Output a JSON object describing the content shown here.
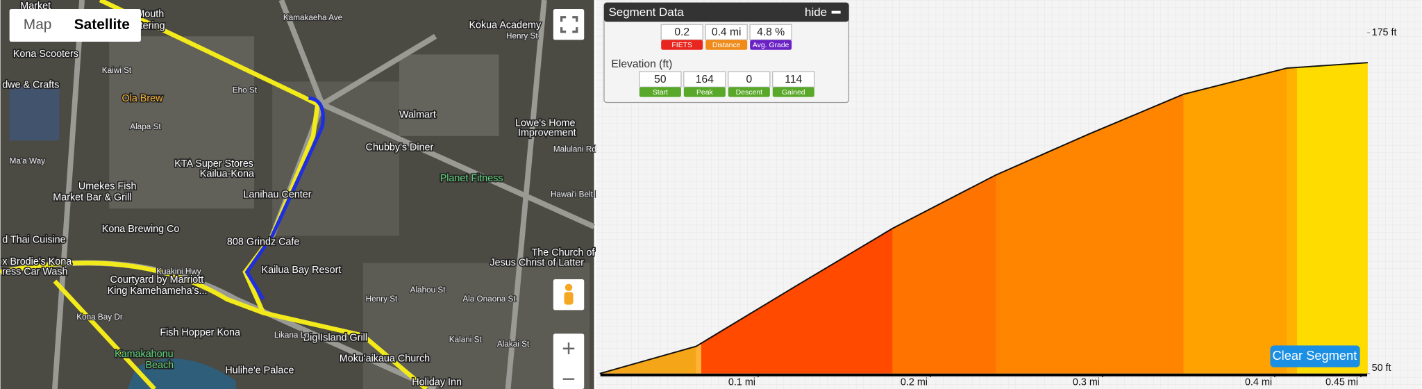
{
  "map": {
    "controls": {
      "map": "Map",
      "satellite": "Satellite",
      "zoom_in": "+",
      "zoom_out": "−"
    },
    "labels": [
      "Market",
      "Mouth",
      "Catering",
      "Kona Scooters",
      "dwe & Crafts",
      "Ola Brew",
      "Alapa St",
      "Ma'a Way",
      "KTA Super Stores",
      "Kailua-Kona",
      "Umekes Fish",
      "Market Bar & Grill",
      "Lanihau Center",
      "Kona Brewing Co",
      "d Thai Cuisine",
      "808 Grindz Cafe",
      "x Brodie's Kona",
      "ress Car Wash",
      "Courtyard by Marriott",
      "King Kamehameha's...",
      "Kailua Bay Resort",
      "Fish Hopper Kona",
      "Big Island Grill",
      "Kamakahonu",
      "Beach",
      "Hulihe'e Palace",
      "Moku'aikaua Church",
      "Holiday Inn",
      "Kokua Academy",
      "Walmart",
      "Chubby's Diner",
      "Lowe's Home",
      "Improvement",
      "Planet Fitness",
      "The Church of",
      "Jesus Christ of Latter",
      "Kamakaeha Ave",
      "Henry St",
      "Eho St",
      "Kaiwi St",
      "Hawai'i Belt Rd",
      "Malulani Rd",
      "Kuakini Hwy",
      "Ala Onaona St",
      "Kalani St",
      "Alakai St",
      "Likana Ln",
      "Kona Bay Dr",
      "Henry St",
      "Alahou St"
    ]
  },
  "segment_data": {
    "title": "Segment Data",
    "hide": "hide",
    "stats": [
      {
        "value": "0.2",
        "label": "FIETS"
      },
      {
        "value": "0.4 mi",
        "label": "Distance"
      },
      {
        "value": "4.8 %",
        "label": "Avg. Grade"
      }
    ],
    "elevation_title": "Elevation (ft)",
    "elevation_stats": [
      {
        "value": "50",
        "label": "Start"
      },
      {
        "value": "164",
        "label": "Peak"
      },
      {
        "value": "0",
        "label": "Descent"
      },
      {
        "value": "114",
        "label": "Gained"
      }
    ]
  },
  "clear_segment": "Clear Segment",
  "chart_data": {
    "type": "area",
    "x": [
      0.008,
      0.064,
      0.118,
      0.178,
      0.238,
      0.292,
      0.347,
      0.407,
      0.454
    ],
    "values": [
      50,
      60,
      80.6,
      103.2,
      122.8,
      137.8,
      152.4,
      162,
      164
    ],
    "xlim": [
      0,
      0.455
    ],
    "ylim": [
      50,
      175
    ],
    "xticks": [
      {
        "value": 0.1,
        "label": "0.1 mi"
      },
      {
        "value": 0.2,
        "label": "0.2 mi"
      },
      {
        "value": 0.3,
        "label": "0.3 mi"
      },
      {
        "value": 0.4,
        "label": "0.4 mi"
      },
      {
        "value": 0.45,
        "label": "0.45 mi"
      }
    ],
    "yticks": [
      {
        "value": 50,
        "label": "50 ft"
      },
      {
        "value": 175,
        "label": "175 ft"
      }
    ],
    "grade_bands": [
      {
        "x": [
          0.008,
          0.064
        ],
        "color": "#f5a618"
      },
      {
        "x": [
          0.064,
          0.067
        ],
        "color": "#ffb23a"
      },
      {
        "x": [
          0.067,
          0.178
        ],
        "color": "#ff4a00"
      },
      {
        "x": [
          0.178,
          0.238
        ],
        "color": "#ff7400"
      },
      {
        "x": [
          0.238,
          0.347
        ],
        "color": "#ff8500"
      },
      {
        "x": [
          0.347,
          0.407
        ],
        "color": "#ffa200"
      },
      {
        "x": [
          0.407,
          0.413
        ],
        "color": "#ffb300"
      },
      {
        "x": [
          0.413,
          0.454
        ],
        "color": "#ffdc00"
      }
    ],
    "line_color": "#111"
  }
}
